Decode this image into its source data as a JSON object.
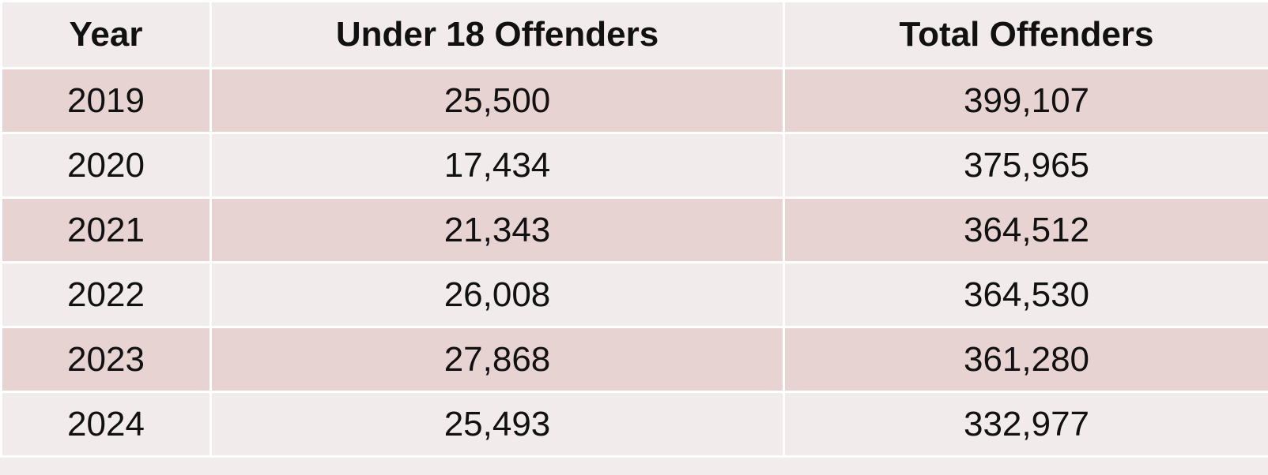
{
  "table": {
    "header": [
      "Year",
      "Under 18 Offenders",
      "Total Offenders"
    ],
    "rows": [
      [
        "2019",
        "25,500",
        "399,107"
      ],
      [
        "2020",
        "17,434",
        "375,965"
      ],
      [
        "2021",
        "21,343",
        "364,512"
      ],
      [
        "2022",
        "26,008",
        "364,530"
      ],
      [
        "2023",
        "27,868",
        "361,280"
      ],
      [
        "2024",
        "25,493",
        "332,977"
      ]
    ]
  }
}
